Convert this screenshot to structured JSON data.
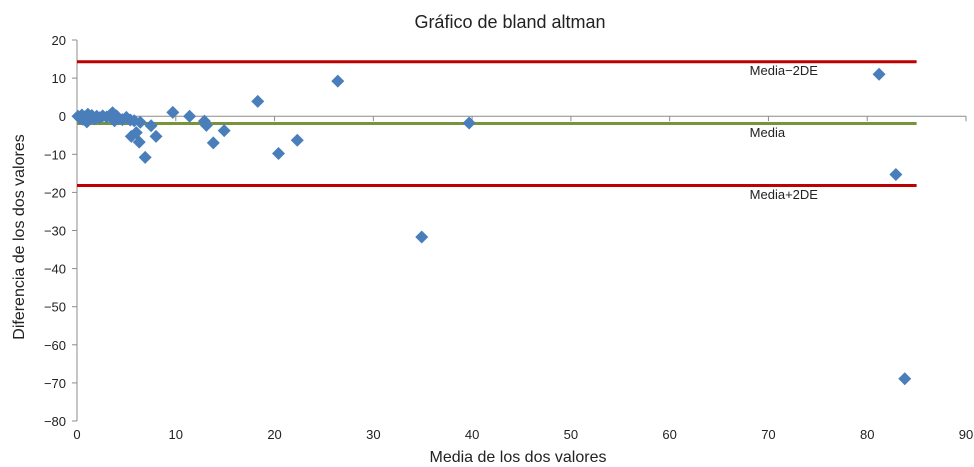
{
  "chart_data": {
    "type": "scatter",
    "title": "Gráfico de bland altman",
    "xlabel": "Media de los dos valores",
    "ylabel": "Diferencia de los dos valores",
    "xlim": [
      0,
      90
    ],
    "ylim": [
      -80,
      20
    ],
    "x_ticks": [
      0,
      10,
      20,
      30,
      40,
      50,
      60,
      70,
      80,
      90
    ],
    "y_ticks": [
      20,
      10,
      0,
      -10,
      -20,
      -30,
      -40,
      -50,
      -60,
      -70,
      -80
    ],
    "y_tick_labels": [
      "20",
      "10",
      "0",
      "−10",
      "−20",
      "−30",
      "−40",
      "−50",
      "−60",
      "−70",
      "−80"
    ],
    "grid": false,
    "marker_color": "#4a7ebb",
    "series": [
      {
        "points": [
          {
            "x": 0.1,
            "y": 0.0
          },
          {
            "x": 0.3,
            "y": -0.5
          },
          {
            "x": 0.5,
            "y": 0.3
          },
          {
            "x": 0.6,
            "y": -0.8
          },
          {
            "x": 0.8,
            "y": -0.2
          },
          {
            "x": 1.0,
            "y": -1.5
          },
          {
            "x": 1.1,
            "y": 0.5
          },
          {
            "x": 1.3,
            "y": -0.5
          },
          {
            "x": 1.5,
            "y": 0.2
          },
          {
            "x": 1.8,
            "y": -0.7
          },
          {
            "x": 2.0,
            "y": 0.0
          },
          {
            "x": 2.3,
            "y": -0.4
          },
          {
            "x": 2.6,
            "y": 0.1
          },
          {
            "x": 3.0,
            "y": -0.2
          },
          {
            "x": 3.3,
            "y": 0.2
          },
          {
            "x": 3.6,
            "y": 0.9
          },
          {
            "x": 3.8,
            "y": -1.2
          },
          {
            "x": 4.0,
            "y": 0.1
          },
          {
            "x": 4.2,
            "y": -0.6
          },
          {
            "x": 4.6,
            "y": -0.9
          },
          {
            "x": 5.0,
            "y": -0.3
          },
          {
            "x": 5.4,
            "y": -1.0
          },
          {
            "x": 5.5,
            "y": -5.3
          },
          {
            "x": 5.8,
            "y": -1.2
          },
          {
            "x": 6.0,
            "y": -4.3
          },
          {
            "x": 6.3,
            "y": -6.8
          },
          {
            "x": 6.4,
            "y": -1.6
          },
          {
            "x": 6.9,
            "y": -10.8
          },
          {
            "x": 7.5,
            "y": -2.5
          },
          {
            "x": 8.0,
            "y": -5.3
          },
          {
            "x": 9.7,
            "y": 1.0
          },
          {
            "x": 11.4,
            "y": 0.0
          },
          {
            "x": 12.9,
            "y": -1.3
          },
          {
            "x": 13.1,
            "y": -2.4
          },
          {
            "x": 13.8,
            "y": -7.0
          },
          {
            "x": 14.9,
            "y": -3.8
          },
          {
            "x": 18.3,
            "y": 3.9
          },
          {
            "x": 20.4,
            "y": -9.8
          },
          {
            "x": 22.3,
            "y": -6.3
          },
          {
            "x": 26.4,
            "y": 9.2
          },
          {
            "x": 34.9,
            "y": -31.7
          },
          {
            "x": 39.7,
            "y": -1.8
          },
          {
            "x": 81.2,
            "y": 11.0
          },
          {
            "x": 82.9,
            "y": -15.3
          },
          {
            "x": 83.8,
            "y": -68.9
          }
        ]
      }
    ],
    "reference_lines": [
      {
        "label": "Media−2DE",
        "y": 14.3,
        "color": "#c00000",
        "label_x": 68.1,
        "label_y": 10.8
      },
      {
        "label": "Media",
        "y": -1.9,
        "color": "#77933c",
        "label_x": 68.1,
        "label_y": -5.5
      },
      {
        "label": "Media+2DE",
        "y": -18.2,
        "color": "#c00000",
        "label_x": 68.1,
        "label_y": -21.7
      }
    ],
    "x_end": 85.0
  }
}
